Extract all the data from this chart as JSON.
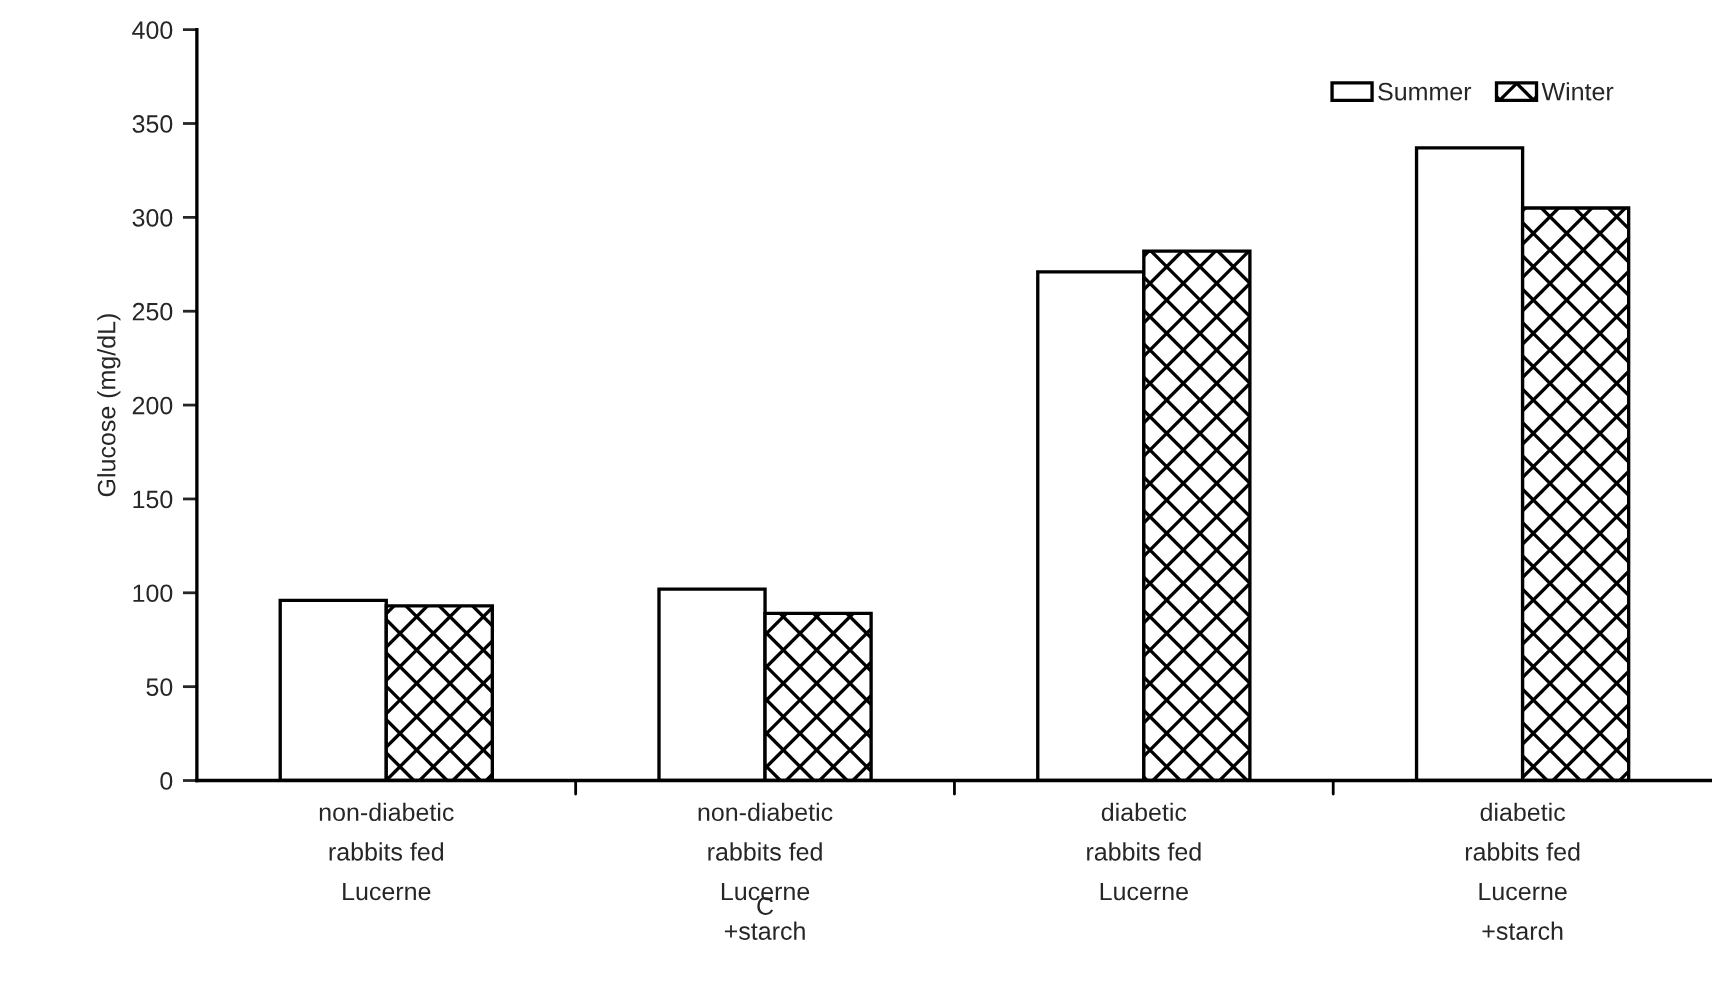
{
  "chart_data": {
    "type": "bar",
    "ylabel": "Glucose (mg/dL)",
    "categories": [
      "non-diabetic\nrabbits fed\nLucerne",
      "non-diabetic\nrabbits fed\nLucerne\n+starch",
      "diabetic\nrabbits fed\nLucerne",
      "diabetic\nrabbits fed\nLucerne\n+starch"
    ],
    "series": [
      {
        "name": "Summer",
        "color": "#ffffff",
        "values": [
          96,
          102,
          271,
          337
        ]
      },
      {
        "name": "Winter",
        "color": "#000000",
        "values": [
          93,
          89,
          282,
          305
        ]
      }
    ],
    "ylim": [
      0,
      400
    ],
    "yticks": [
      0,
      50,
      100,
      150,
      200,
      250,
      300,
      350,
      400
    ],
    "grid": false,
    "legend": "top right",
    "annotations": [
      "C"
    ]
  }
}
